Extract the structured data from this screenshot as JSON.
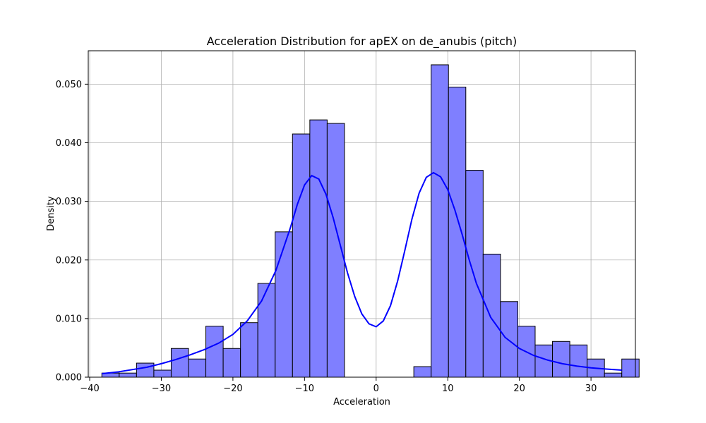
{
  "chart_data": {
    "type": "bar",
    "title": "Acceleration Distribution for apEX on de_anubis (pitch)",
    "xlabel": "Acceleration",
    "ylabel": "Density",
    "xlim": [
      -40.2,
      36.2
    ],
    "ylim": [
      0,
      0.0557
    ],
    "grid": true,
    "bar_color": "#7f7fff",
    "bar_edge_color": "#000000",
    "kde_color": "#0000ff",
    "x_ticks": [
      -40,
      -30,
      -20,
      -10,
      0,
      10,
      20,
      30
    ],
    "x_tick_labels": [
      "−40",
      "−30",
      "−20",
      "−10",
      "0",
      "10",
      "20",
      "30"
    ],
    "y_ticks": [
      0,
      0.01,
      0.02,
      0.03,
      0.04,
      0.05
    ],
    "y_tick_labels": [
      "0.000",
      "0.010",
      "0.020",
      "0.030",
      "0.040",
      "0.050"
    ],
    "histogram": {
      "bin_start": -38.3,
      "bin_width": 2.42,
      "densities": [
        0.0007,
        0.0007,
        0.0024,
        0.0012,
        0.0049,
        0.0031,
        0.0087,
        0.0049,
        0.0093,
        0.016,
        0.0248,
        0.0415,
        0.0439,
        0.0433,
        0.0,
        0.0,
        0.0,
        0.0,
        0.0018,
        0.0533,
        0.0495,
        0.0353,
        0.021,
        0.0129,
        0.0087,
        0.0055,
        0.0061,
        0.0055,
        0.0031,
        0.0007,
        0.0031
      ]
    },
    "kde": {
      "x": [
        -38.3,
        -36,
        -34,
        -32,
        -30,
        -28,
        -26,
        -24,
        -22,
        -20,
        -18,
        -16,
        -14,
        -12,
        -11,
        -10,
        -9,
        -8,
        -7,
        -6,
        -5,
        -4,
        -3,
        -2,
        -1,
        0,
        1,
        2,
        3,
        4,
        5,
        6,
        7,
        8,
        9,
        10,
        11,
        12,
        13,
        14,
        16,
        18,
        20,
        22,
        24,
        26,
        28,
        30,
        32,
        34.3
      ],
      "y": [
        0.0006,
        0.0009,
        0.0013,
        0.0017,
        0.0023,
        0.003,
        0.0038,
        0.0047,
        0.0058,
        0.0073,
        0.0096,
        0.013,
        0.0182,
        0.0254,
        0.0295,
        0.0328,
        0.0344,
        0.0338,
        0.0312,
        0.0272,
        0.0225,
        0.0178,
        0.0138,
        0.0108,
        0.0091,
        0.0086,
        0.0096,
        0.0122,
        0.0164,
        0.0216,
        0.027,
        0.0314,
        0.0341,
        0.0349,
        0.0342,
        0.032,
        0.0285,
        0.0244,
        0.02,
        0.016,
        0.0102,
        0.0068,
        0.0049,
        0.0037,
        0.0029,
        0.0023,
        0.0019,
        0.0016,
        0.0014,
        0.0012
      ]
    }
  }
}
